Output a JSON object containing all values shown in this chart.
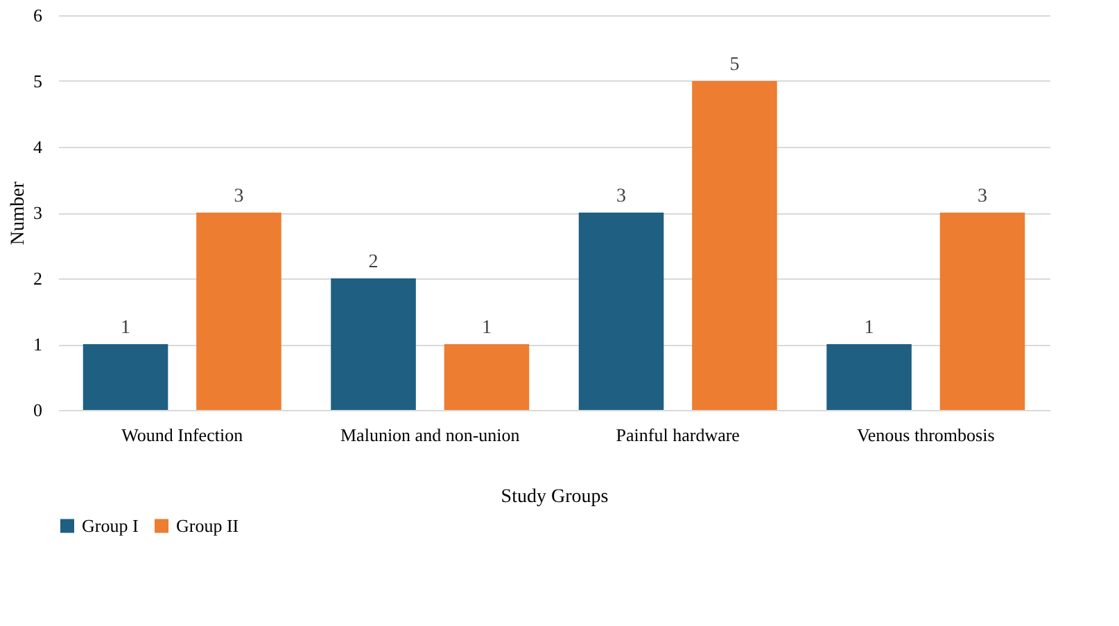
{
  "chart_data": {
    "type": "bar",
    "xlabel": "Study Groups",
    "ylabel": "Number",
    "categories": [
      "Wound Infection",
      "Malunion and non-union",
      "Painful hardware",
      "Venous thrombosis"
    ],
    "series": [
      {
        "name": "Group I",
        "color": "#1f5f82",
        "values": [
          1,
          2,
          3,
          1
        ]
      },
      {
        "name": "Group II",
        "color": "#ed7d31",
        "values": [
          3,
          1,
          5,
          3
        ]
      }
    ],
    "ylim": [
      0,
      6
    ],
    "yticks": [
      0,
      1,
      2,
      3,
      4,
      5,
      6
    ],
    "grid": "y",
    "legend": "bottom",
    "data_labels": true
  }
}
